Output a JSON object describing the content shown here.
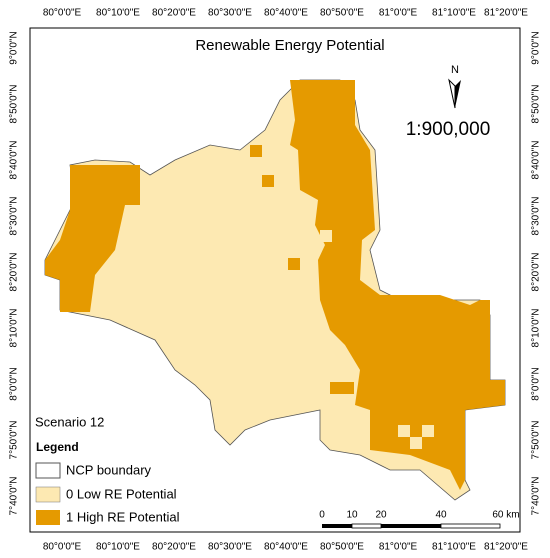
{
  "title": "Renewable Energy Potential",
  "north_arrow": "N",
  "scale": "1:900,000",
  "scenario": "Scenario 12",
  "legend": {
    "title": "Legend",
    "items": [
      "NCP boundary",
      "0 Low RE Potential",
      "1 High RE Potential"
    ]
  },
  "graticule": {
    "top": [
      "80°0'0\"E",
      "80°10'0\"E",
      "80°20'0\"E",
      "80°30'0\"E",
      "80°40'0\"E",
      "80°50'0\"E",
      "81°0'0\"E",
      "81°10'0\"E",
      "81°20'0\"E"
    ],
    "bottom": [
      "80°0'0\"E",
      "80°10'0\"E",
      "80°20'0\"E",
      "80°30'0\"E",
      "80°40'0\"E",
      "80°50'0\"E",
      "81°0'0\"E",
      "81°10'0\"E",
      "81°20'0\"E"
    ],
    "left": [
      "9°0'0\"N",
      "8°50'0\"N",
      "8°40'0\"N",
      "8°30'0\"N",
      "8°20'0\"N",
      "8°10'0\"N",
      "8°0'0\"N",
      "7°50'0\"N",
      "7°40'0\"N"
    ],
    "right": [
      "9°0'0\"N",
      "8°50'0\"N",
      "8°40'0\"N",
      "8°30'0\"N",
      "8°20'0\"N",
      "8°10'0\"N",
      "8°0'0\"N",
      "7°50'0\"N",
      "7°40'0\"N"
    ]
  },
  "scale_bar": [
    "0",
    "10",
    "20",
    "40",
    "60 km"
  ]
}
